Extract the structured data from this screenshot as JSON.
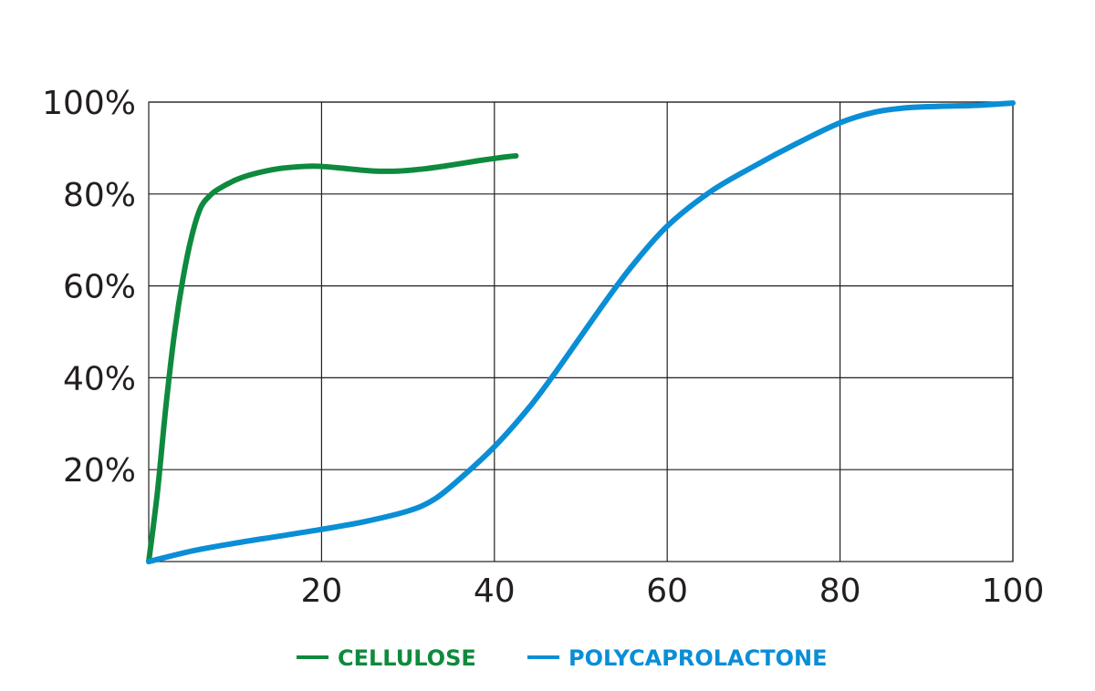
{
  "chart_data": {
    "type": "line",
    "title": "",
    "xlabel": "",
    "ylabel": "",
    "xlim": [
      0,
      100
    ],
    "ylim": [
      0,
      100
    ],
    "grid": true,
    "legend_position": "bottom",
    "x_ticks": [
      {
        "value": 20,
        "label": "20"
      },
      {
        "value": 40,
        "label": "40"
      },
      {
        "value": 60,
        "label": "60"
      },
      {
        "value": 80,
        "label": "80"
      },
      {
        "value": 100,
        "label": "100"
      }
    ],
    "y_ticks": [
      {
        "value": 20,
        "label": "20%"
      },
      {
        "value": 40,
        "label": "40%"
      },
      {
        "value": 60,
        "label": "60%"
      },
      {
        "value": 80,
        "label": "80%"
      },
      {
        "value": 100,
        "label": "100%"
      }
    ],
    "series": [
      {
        "name": "CELLULOSE",
        "color": "#0e8a3e",
        "points": [
          [
            0,
            0
          ],
          [
            1,
            15
          ],
          [
            2,
            34
          ],
          [
            3,
            50
          ],
          [
            4,
            62
          ],
          [
            5,
            71
          ],
          [
            6,
            77
          ],
          [
            7,
            79.5
          ],
          [
            8,
            81
          ],
          [
            10,
            83
          ],
          [
            12,
            84.3
          ],
          [
            15,
            85.5
          ],
          [
            18,
            86
          ],
          [
            20,
            86
          ],
          [
            23,
            85.5
          ],
          [
            26,
            85
          ],
          [
            29,
            85
          ],
          [
            32,
            85.5
          ],
          [
            35,
            86.3
          ],
          [
            38,
            87.2
          ],
          [
            41,
            88
          ],
          [
            42.5,
            88.3
          ]
        ]
      },
      {
        "name": "POLYCAPROLACTONE",
        "color": "#0a8ed6",
        "points": [
          [
            0,
            0
          ],
          [
            5,
            2.3
          ],
          [
            10,
            4
          ],
          [
            15,
            5.5
          ],
          [
            20,
            7
          ],
          [
            25,
            8.7
          ],
          [
            30,
            11
          ],
          [
            33,
            13.5
          ],
          [
            36,
            18
          ],
          [
            40,
            25
          ],
          [
            44,
            33.5
          ],
          [
            47,
            41
          ],
          [
            50,
            49
          ],
          [
            53,
            57
          ],
          [
            56,
            64.5
          ],
          [
            60,
            73
          ],
          [
            65,
            80.5
          ],
          [
            70,
            86
          ],
          [
            75,
            91
          ],
          [
            80,
            95.5
          ],
          [
            84,
            97.8
          ],
          [
            88,
            98.8
          ],
          [
            92,
            99.1
          ],
          [
            96,
            99.3
          ],
          [
            100,
            99.8
          ]
        ]
      }
    ]
  }
}
